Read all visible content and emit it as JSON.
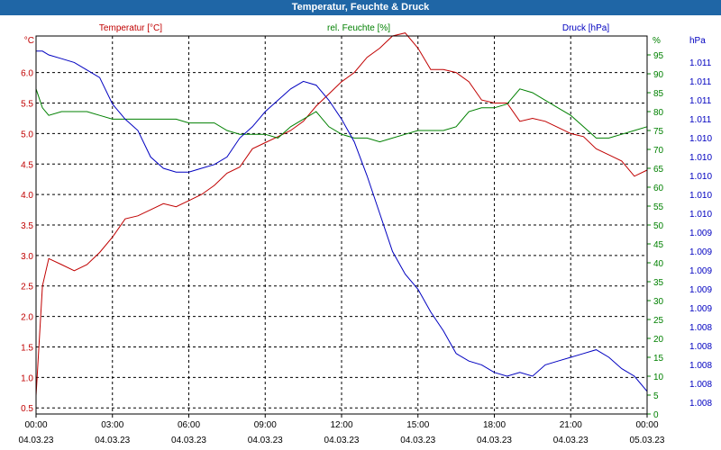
{
  "window": {
    "title": "Temperatur, Feuchte & Druck"
  },
  "colors": {
    "title_bar": "#1f66a6",
    "temperature": "#c00000",
    "humidity": "#008000",
    "pressure": "#0000c0",
    "grid": "#000000"
  },
  "chart_data": {
    "type": "line",
    "title": "Temperatur, Feuchte & Druck",
    "grid": true,
    "series_labels": {
      "temperature": "Temperatur [°C]",
      "humidity": "rel. Feuchte [%]",
      "pressure": "Druck [hPa]"
    },
    "axes": {
      "left": {
        "unit": "°C",
        "range": [
          0.4,
          6.6
        ],
        "ticks": [
          "0.5",
          "1.0",
          "1.5",
          "2.0",
          "2.5",
          "3.0",
          "3.5",
          "4.0",
          "4.5",
          "5.0",
          "5.5",
          "6.0"
        ]
      },
      "right1": {
        "unit": "%",
        "range": [
          0,
          100
        ],
        "ticks": [
          "0",
          "5",
          "10",
          "15",
          "20",
          "25",
          "30",
          "35",
          "40",
          "45",
          "50",
          "55",
          "60",
          "65",
          "70",
          "75",
          "80",
          "85",
          "90",
          "95"
        ]
      },
      "right2": {
        "unit": "hPa",
        "ticks": [
          "1.011",
          "1.011",
          "1.011",
          "1.011",
          "1.010",
          "1.010",
          "1.010",
          "1.010",
          "1.010",
          "1.009",
          "1.009",
          "1.009",
          "1.009",
          "1.009",
          "1.008",
          "1.008",
          "1.008",
          "1.008",
          "1.008"
        ]
      },
      "x": {
        "times": [
          "00:00",
          "03:00",
          "06:00",
          "09:00",
          "12:00",
          "15:00",
          "18:00",
          "21:00",
          "00:00"
        ],
        "dates": [
          "04.03.23",
          "04.03.23",
          "04.03.23",
          "04.03.23",
          "04.03.23",
          "04.03.23",
          "04.03.23",
          "04.03.23",
          "05.03.23"
        ]
      }
    },
    "x_hours": [
      0,
      0.25,
      0.5,
      1,
      1.5,
      2,
      2.5,
      3,
      3.5,
      4,
      4.5,
      5,
      5.5,
      6,
      6.5,
      7,
      7.5,
      8,
      8.5,
      9,
      9.5,
      10,
      10.5,
      11,
      11.5,
      12,
      12.5,
      13,
      13.5,
      14,
      14.5,
      15,
      15.5,
      16,
      16.5,
      17,
      17.5,
      18,
      18.5,
      19,
      19.5,
      20,
      20.5,
      21,
      21.5,
      22,
      22.5,
      23,
      23.5,
      24
    ],
    "series": [
      {
        "name": "Temperatur [°C]",
        "axis": "left",
        "color": "#c00000",
        "values": [
          0.7,
          2.5,
          2.95,
          2.85,
          2.75,
          2.85,
          3.05,
          3.3,
          3.6,
          3.65,
          3.75,
          3.85,
          3.8,
          3.9,
          4.0,
          4.15,
          4.35,
          4.45,
          4.75,
          4.85,
          4.95,
          5.05,
          5.2,
          5.45,
          5.65,
          5.85,
          6.0,
          6.25,
          6.4,
          6.6,
          6.65,
          6.4,
          6.05,
          6.05,
          6.0,
          5.85,
          5.55,
          5.5,
          5.5,
          5.2,
          5.25,
          5.2,
          5.1,
          5.0,
          4.95,
          4.75,
          4.65,
          4.55,
          4.3,
          4.4
        ]
      },
      {
        "name": "rel. Feuchte [%]",
        "axis": "right1",
        "color": "#008000",
        "values": [
          86,
          81,
          79,
          80,
          80,
          80,
          79,
          78,
          78,
          78,
          78,
          78,
          78,
          77,
          77,
          77,
          75,
          74,
          74,
          74,
          73,
          76,
          78,
          80,
          76,
          74,
          73,
          73,
          72,
          73,
          74,
          75,
          75,
          75,
          76,
          80,
          81,
          81,
          82,
          86,
          85,
          83,
          81,
          79,
          76,
          73,
          73,
          74,
          75,
          76
        ]
      },
      {
        "name": "Druck [hPa]",
        "axis": "right1",
        "color": "#0000c0",
        "values": [
          96,
          96,
          95,
          94,
          93,
          91,
          89,
          82,
          78,
          75,
          68,
          65,
          64,
          64,
          65,
          66,
          68,
          73,
          76,
          80,
          83,
          86,
          88,
          87,
          83,
          78,
          72,
          63,
          53,
          43,
          37,
          33,
          27,
          22,
          16,
          14,
          13,
          11,
          10,
          11,
          10,
          13,
          14,
          15,
          16,
          17,
          15,
          12,
          10,
          6
        ]
      }
    ]
  }
}
